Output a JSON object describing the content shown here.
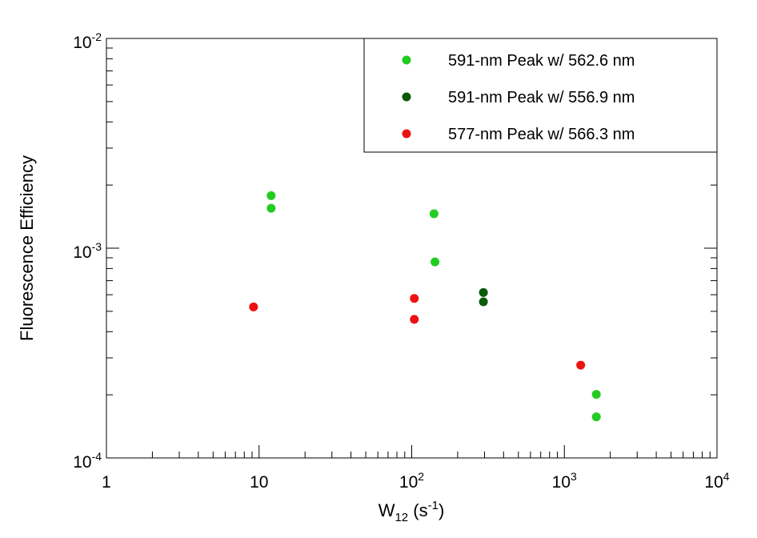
{
  "chart_data": {
    "type": "scatter",
    "xlabel": {
      "base": "W",
      "sub": "12",
      "mid": " (s",
      "sup": "-1",
      "end": ")"
    },
    "ylabel": "Fluorescence Efficiency",
    "x_scale": "log",
    "y_scale": "log",
    "xlim": [
      1,
      10000
    ],
    "ylim": [
      0.0001,
      0.01
    ],
    "x_ticks": [
      {
        "value": 1,
        "base": "1",
        "sup": ""
      },
      {
        "value": 10,
        "base": "10",
        "sup": ""
      },
      {
        "value": 100,
        "base": "10",
        "sup": "2"
      },
      {
        "value": 1000,
        "base": "10",
        "sup": "3"
      },
      {
        "value": 10000,
        "base": "10",
        "sup": "4"
      }
    ],
    "y_ticks": [
      {
        "value": 0.0001,
        "base": "10",
        "sup": "-4"
      },
      {
        "value": 0.001,
        "base": "10",
        "sup": "-3"
      },
      {
        "value": 0.01,
        "base": "10",
        "sup": "-2"
      }
    ],
    "grid": false,
    "legend_position": "top-right",
    "series": [
      {
        "name": "591-nm Peak w/ 562.6 nm",
        "color": "#22cc22",
        "points": [
          {
            "x": 12,
            "y": 0.00178
          },
          {
            "x": 12,
            "y": 0.00155
          },
          {
            "x": 140,
            "y": 0.00146
          },
          {
            "x": 142,
            "y": 0.00086
          },
          {
            "x": 1620,
            "y": 0.000201
          },
          {
            "x": 1620,
            "y": 0.000157
          }
        ]
      },
      {
        "name": "591-nm Peak w/ 556.9 nm",
        "color": "#0a5a0a",
        "points": [
          {
            "x": 295,
            "y": 0.000615
          },
          {
            "x": 295,
            "y": 0.000555
          }
        ]
      },
      {
        "name": "577-nm Peak w/ 566.3 nm",
        "color": "#ee1111",
        "points": [
          {
            "x": 9.2,
            "y": 0.000525
          },
          {
            "x": 104,
            "y": 0.000576
          },
          {
            "x": 104,
            "y": 0.000458
          },
          {
            "x": 1280,
            "y": 0.000277
          }
        ]
      }
    ]
  }
}
